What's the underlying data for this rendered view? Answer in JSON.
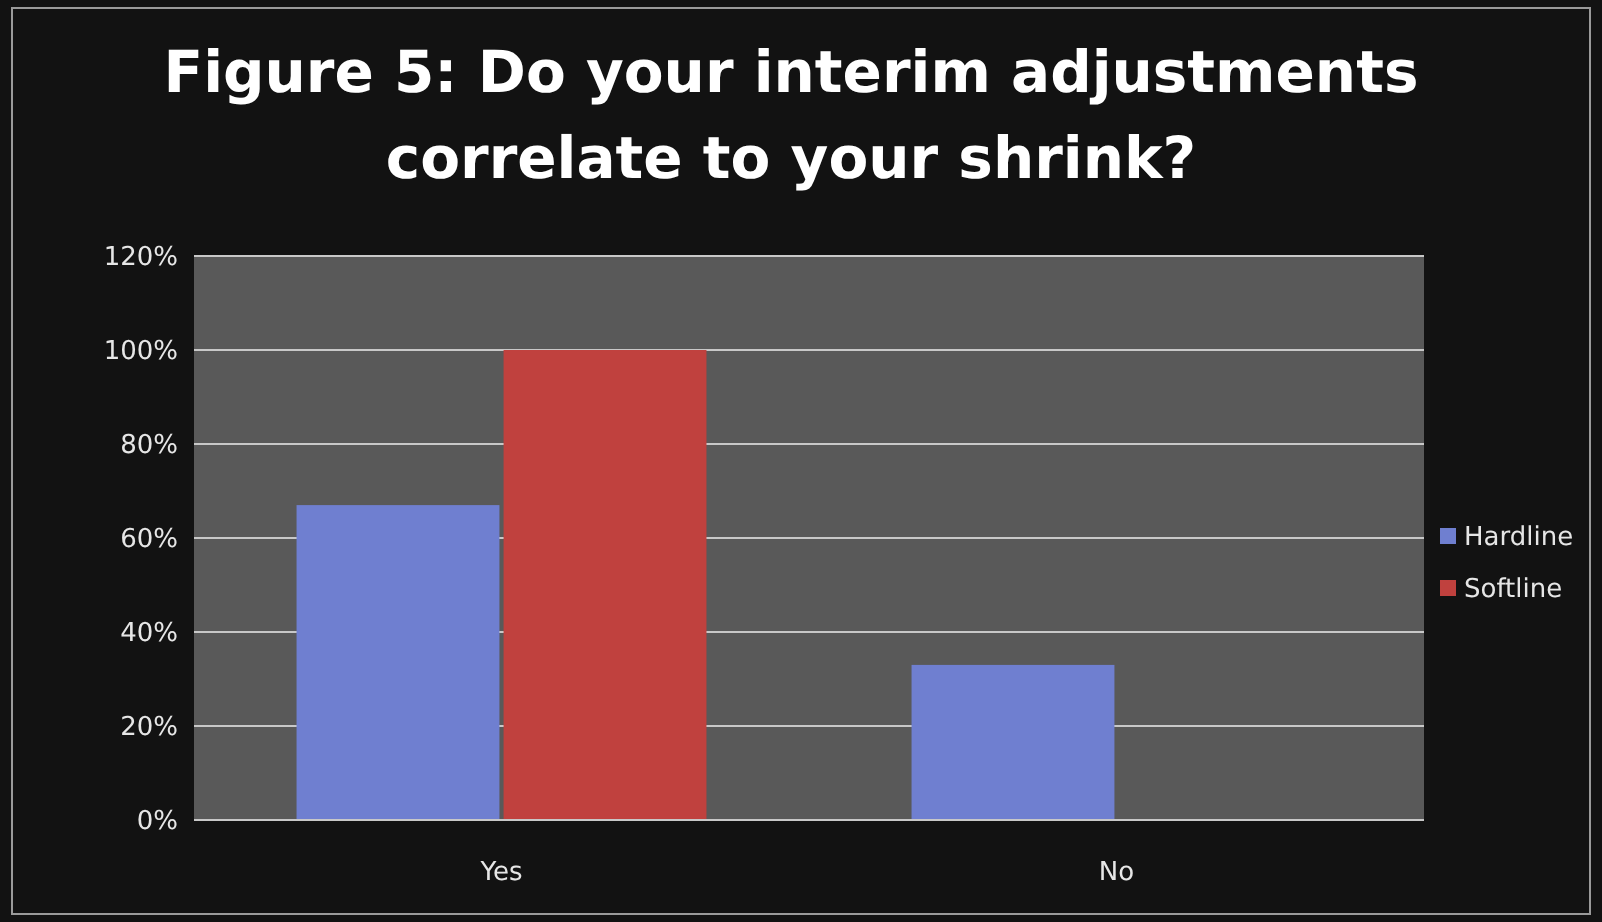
{
  "chart_data": {
    "type": "bar",
    "title": "Figure 5: Do your interim adjustments correlate to your shrink?",
    "categories": [
      "Yes",
      "No"
    ],
    "series": [
      {
        "name": "Hardline",
        "color": "#6f7fd0",
        "values": [
          67,
          33
        ]
      },
      {
        "name": "Softline",
        "color": "#c0413e",
        "values": [
          100,
          0
        ]
      }
    ],
    "ylim": [
      0,
      120
    ],
    "yticks": [
      {
        "value": 0,
        "label": "0%"
      },
      {
        "value": 20,
        "label": "20%"
      },
      {
        "value": 40,
        "label": "40%"
      },
      {
        "value": 60,
        "label": "60%"
      },
      {
        "value": 80,
        "label": "80%"
      },
      {
        "value": 100,
        "label": "100%"
      },
      {
        "value": 120,
        "label": "120%"
      }
    ],
    "grid": "y",
    "legend": "right"
  }
}
